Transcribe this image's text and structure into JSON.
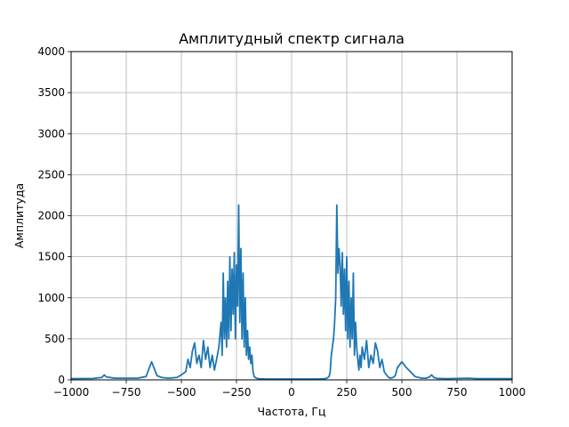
{
  "chart_data": {
    "type": "line",
    "title": "Амплитудный спектр сигнала",
    "xlabel": "Частота, Гц",
    "ylabel": "Амплитуда",
    "xlim": [
      -1000,
      1000
    ],
    "ylim": [
      0,
      4000
    ],
    "xticks": [
      -1000,
      -750,
      -500,
      -250,
      0,
      250,
      500,
      750,
      1000
    ],
    "xtick_labels": [
      "−1000",
      "−750",
      "−500",
      "−250",
      "0",
      "250",
      "500",
      "750",
      "1000"
    ],
    "yticks": [
      0,
      500,
      1000,
      1500,
      2000,
      2500,
      3000,
      3500,
      4000
    ],
    "ytick_labels": [
      "0",
      "500",
      "1000",
      "1500",
      "2000",
      "2500",
      "3000",
      "3500",
      "4000"
    ],
    "grid": true,
    "line_color": "#1f77b4",
    "series": [
      {
        "x": [
          -1000,
          -900,
          -860,
          -850,
          -840,
          -800,
          -700,
          -660,
          -645,
          -635,
          -625,
          -610,
          -590,
          -560,
          -520,
          -500,
          -480,
          -470,
          -460,
          -450,
          -440,
          -430,
          -420,
          -410,
          -400,
          -390,
          -380,
          -370,
          -360,
          -350,
          -340,
          -330,
          -320,
          -315,
          -310,
          -305,
          -300,
          -295,
          -290,
          -285,
          -280,
          -275,
          -270,
          -265,
          -260,
          -255,
          -250,
          -245,
          -240,
          -235,
          -230,
          -225,
          -220,
          -215,
          -210,
          -205,
          -200,
          -195,
          -190,
          -185,
          -180,
          -175,
          -170,
          -160,
          -150,
          -120,
          -80,
          -40,
          0,
          40,
          80,
          120,
          150,
          160,
          170,
          175,
          180,
          185,
          190,
          195,
          200,
          205,
          210,
          215,
          220,
          225,
          230,
          235,
          240,
          245,
          250,
          255,
          260,
          265,
          270,
          275,
          280,
          285,
          290,
          295,
          300,
          305,
          310,
          315,
          320,
          330,
          340,
          350,
          360,
          370,
          380,
          390,
          400,
          410,
          420,
          430,
          440,
          450,
          460,
          470,
          480,
          500,
          520,
          560,
          590,
          610,
          625,
          635,
          645,
          660,
          700,
          800,
          840,
          850,
          860,
          900,
          1000
        ],
        "y": [
          15,
          18,
          30,
          60,
          35,
          20,
          20,
          40,
          150,
          220,
          150,
          50,
          30,
          20,
          30,
          60,
          100,
          250,
          150,
          350,
          450,
          200,
          300,
          150,
          480,
          250,
          400,
          150,
          300,
          120,
          250,
          400,
          700,
          300,
          1300,
          500,
          1000,
          400,
          1200,
          500,
          1500,
          600,
          1350,
          800,
          1550,
          500,
          1400,
          900,
          2130,
          700,
          1600,
          500,
          1300,
          400,
          1000,
          300,
          600,
          250,
          400,
          200,
          300,
          100,
          40,
          20,
          15,
          10,
          10,
          10,
          10,
          10,
          10,
          10,
          15,
          20,
          40,
          100,
          300,
          400,
          500,
          700,
          1000,
          2130,
          1300,
          1600,
          1400,
          900,
          1550,
          800,
          1350,
          600,
          1500,
          500,
          1200,
          400,
          1000,
          500,
          1300,
          300,
          700,
          400,
          250,
          120,
          300,
          150,
          400,
          250,
          480,
          150,
          300,
          200,
          450,
          350,
          150,
          250,
          100,
          60,
          30,
          20,
          30,
          50,
          150,
          220,
          150,
          40,
          20,
          20,
          35,
          60,
          30,
          18,
          15,
          20,
          15,
          15,
          15,
          15,
          15
        ]
      }
    ]
  }
}
